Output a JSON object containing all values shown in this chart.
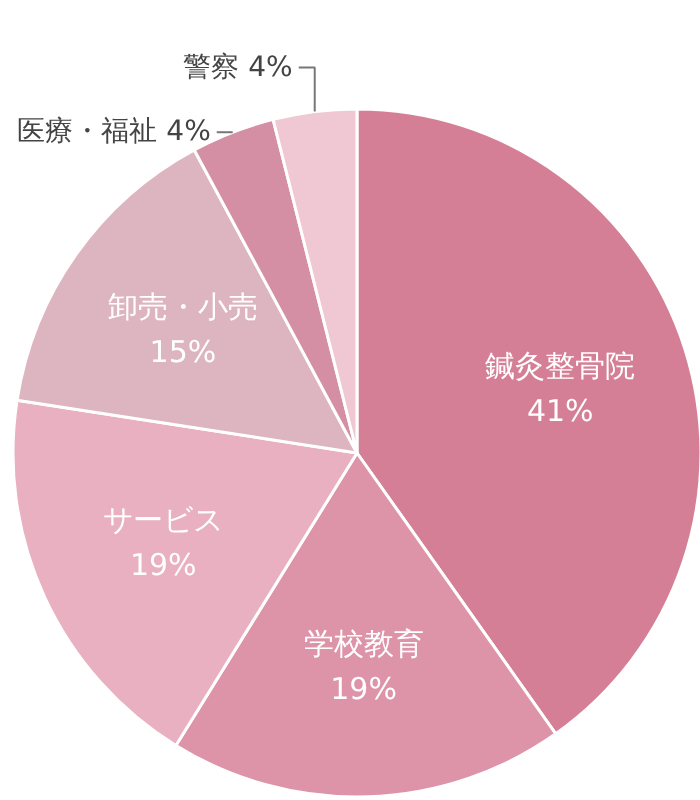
{
  "chart_data": {
    "type": "pie",
    "categories": [
      "鍼灸整骨院",
      "学校教育",
      "サービス",
      "卸売・小売",
      "医療・福祉",
      "警察"
    ],
    "values": [
      41,
      19,
      19,
      15,
      4,
      4
    ],
    "colors": [
      "#d47f96",
      "#dd93a8",
      "#e8b0c0",
      "#ddb5c1",
      "#d58fa5",
      "#f0c8d3"
    ],
    "value_labels": [
      "41%",
      "19%",
      "19%",
      "15%",
      "4%",
      "4%"
    ]
  }
}
